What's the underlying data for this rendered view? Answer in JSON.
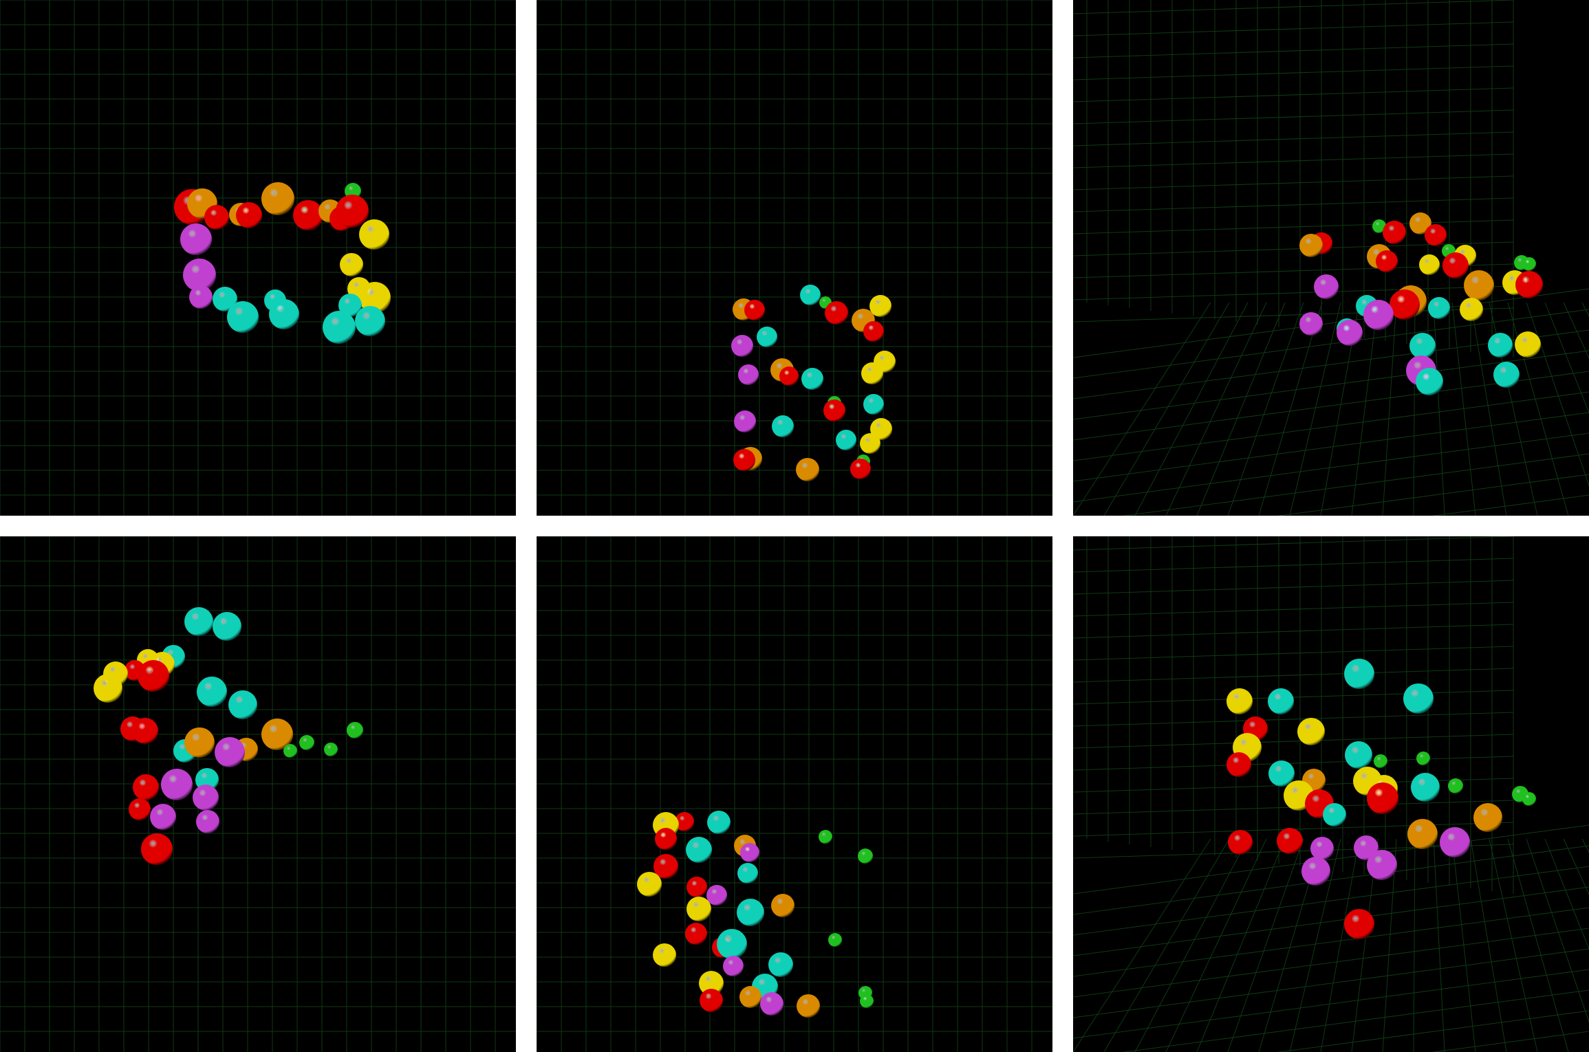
{
  "colors": {
    "background": "#000000",
    "grid": "#0f3a14",
    "red": "#e00000",
    "orange": "#d98a00",
    "yellow": "#e8d400",
    "magenta": "#c040d0",
    "cyan": "#10d0b8",
    "green": "#20c020"
  },
  "panels": [
    {
      "name": "view-1",
      "spheres": [
        {
          "c": "red",
          "x": 279,
          "y": 301,
          "r": 26
        },
        {
          "c": "orange",
          "x": 294,
          "y": 296,
          "r": 22
        },
        {
          "c": "red",
          "x": 315,
          "y": 316,
          "r": 18
        },
        {
          "c": "orange",
          "x": 350,
          "y": 312,
          "r": 17
        },
        {
          "c": "red",
          "x": 362,
          "y": 313,
          "r": 19
        },
        {
          "c": "orange",
          "x": 404,
          "y": 289,
          "r": 24
        },
        {
          "c": "green",
          "x": 440,
          "y": 310,
          "r": 11
        },
        {
          "c": "red",
          "x": 448,
          "y": 313,
          "r": 22
        },
        {
          "c": "orange",
          "x": 480,
          "y": 307,
          "r": 17
        },
        {
          "c": "red",
          "x": 497,
          "y": 318,
          "r": 18
        },
        {
          "c": "green",
          "x": 513,
          "y": 278,
          "r": 12
        },
        {
          "c": "red",
          "x": 512,
          "y": 307,
          "r": 24
        },
        {
          "c": "yellow",
          "x": 544,
          "y": 341,
          "r": 22
        },
        {
          "c": "magenta",
          "x": 285,
          "y": 348,
          "r": 23
        },
        {
          "c": "yellow",
          "x": 511,
          "y": 385,
          "r": 17
        },
        {
          "c": "magenta",
          "x": 290,
          "y": 400,
          "r": 24
        },
        {
          "c": "magenta",
          "x": 292,
          "y": 432,
          "r": 17
        },
        {
          "c": "yellow",
          "x": 522,
          "y": 420,
          "r": 17
        },
        {
          "c": "yellow",
          "x": 545,
          "y": 433,
          "r": 23
        },
        {
          "c": "cyan",
          "x": 327,
          "y": 435,
          "r": 18
        },
        {
          "c": "cyan",
          "x": 400,
          "y": 437,
          "r": 16
        },
        {
          "c": "cyan",
          "x": 509,
          "y": 444,
          "r": 17
        },
        {
          "c": "cyan",
          "x": 353,
          "y": 461,
          "r": 23
        },
        {
          "c": "cyan",
          "x": 413,
          "y": 457,
          "r": 22
        },
        {
          "c": "cyan",
          "x": 538,
          "y": 467,
          "r": 22
        },
        {
          "c": "cyan",
          "x": 493,
          "y": 476,
          "r": 24
        }
      ]
    },
    {
      "name": "view-2",
      "spheres": [
        {
          "c": "cyan",
          "x": 398,
          "y": 429,
          "r": 15
        },
        {
          "c": "green",
          "x": 420,
          "y": 440,
          "r": 9
        },
        {
          "c": "yellow",
          "x": 500,
          "y": 445,
          "r": 16
        },
        {
          "c": "orange",
          "x": 301,
          "y": 450,
          "r": 16
        },
        {
          "c": "red",
          "x": 317,
          "y": 451,
          "r": 15
        },
        {
          "c": "red",
          "x": 436,
          "y": 455,
          "r": 17
        },
        {
          "c": "orange",
          "x": 475,
          "y": 466,
          "r": 17
        },
        {
          "c": "red",
          "x": 490,
          "y": 482,
          "r": 15
        },
        {
          "c": "cyan",
          "x": 335,
          "y": 490,
          "r": 15
        },
        {
          "c": "magenta",
          "x": 299,
          "y": 503,
          "r": 16
        },
        {
          "c": "yellow",
          "x": 506,
          "y": 526,
          "r": 16
        },
        {
          "c": "orange",
          "x": 357,
          "y": 538,
          "r": 17
        },
        {
          "c": "red",
          "x": 367,
          "y": 547,
          "r": 14
        },
        {
          "c": "yellow",
          "x": 488,
          "y": 543,
          "r": 16
        },
        {
          "c": "magenta",
          "x": 308,
          "y": 545,
          "r": 15
        },
        {
          "c": "cyan",
          "x": 401,
          "y": 551,
          "r": 16
        },
        {
          "c": "green",
          "x": 433,
          "y": 586,
          "r": 10
        },
        {
          "c": "red",
          "x": 433,
          "y": 597,
          "r": 16
        },
        {
          "c": "cyan",
          "x": 490,
          "y": 588,
          "r": 15
        },
        {
          "c": "magenta",
          "x": 303,
          "y": 613,
          "r": 16
        },
        {
          "c": "cyan",
          "x": 358,
          "y": 620,
          "r": 16
        },
        {
          "c": "yellow",
          "x": 501,
          "y": 624,
          "r": 16
        },
        {
          "c": "cyan",
          "x": 450,
          "y": 640,
          "r": 15
        },
        {
          "c": "yellow",
          "x": 485,
          "y": 645,
          "r": 15
        },
        {
          "c": "orange",
          "x": 311,
          "y": 667,
          "r": 17
        },
        {
          "c": "red",
          "x": 302,
          "y": 669,
          "r": 16
        },
        {
          "c": "orange",
          "x": 394,
          "y": 683,
          "r": 17
        },
        {
          "c": "green",
          "x": 475,
          "y": 671,
          "r": 10
        },
        {
          "c": "red",
          "x": 471,
          "y": 682,
          "r": 15
        }
      ]
    },
    {
      "name": "view-3",
      "spheres": [
        {
          "c": "green",
          "x": 445,
          "y": 329,
          "r": 10
        },
        {
          "c": "orange",
          "x": 505,
          "y": 325,
          "r": 16
        },
        {
          "c": "red",
          "x": 467,
          "y": 338,
          "r": 17
        },
        {
          "c": "red",
          "x": 527,
          "y": 342,
          "r": 16
        },
        {
          "c": "red",
          "x": 361,
          "y": 354,
          "r": 16
        },
        {
          "c": "orange",
          "x": 346,
          "y": 357,
          "r": 17
        },
        {
          "c": "green",
          "x": 546,
          "y": 365,
          "r": 10
        },
        {
          "c": "yellow",
          "x": 570,
          "y": 372,
          "r": 16
        },
        {
          "c": "orange",
          "x": 445,
          "y": 373,
          "r": 18
        },
        {
          "c": "red",
          "x": 456,
          "y": 380,
          "r": 16
        },
        {
          "c": "yellow",
          "x": 518,
          "y": 385,
          "r": 15
        },
        {
          "c": "red",
          "x": 556,
          "y": 386,
          "r": 19
        },
        {
          "c": "green",
          "x": 652,
          "y": 382,
          "r": 11
        },
        {
          "c": "green",
          "x": 663,
          "y": 384,
          "r": 10
        },
        {
          "c": "orange",
          "x": 590,
          "y": 415,
          "r": 22
        },
        {
          "c": "yellow",
          "x": 642,
          "y": 411,
          "r": 18
        },
        {
          "c": "red",
          "x": 663,
          "y": 414,
          "r": 20
        },
        {
          "c": "magenta",
          "x": 368,
          "y": 417,
          "r": 18
        },
        {
          "c": "cyan",
          "x": 427,
          "y": 445,
          "r": 16
        },
        {
          "c": "orange",
          "x": 491,
          "y": 438,
          "r": 23
        },
        {
          "c": "red",
          "x": 482,
          "y": 443,
          "r": 22
        },
        {
          "c": "cyan",
          "x": 532,
          "y": 448,
          "r": 16
        },
        {
          "c": "yellow",
          "x": 579,
          "y": 450,
          "r": 17
        },
        {
          "c": "magenta",
          "x": 444,
          "y": 458,
          "r": 22
        },
        {
          "c": "magenta",
          "x": 346,
          "y": 471,
          "r": 17
        },
        {
          "c": "cyan",
          "x": 398,
          "y": 478,
          "r": 15
        },
        {
          "c": "magenta",
          "x": 402,
          "y": 484,
          "r": 19
        },
        {
          "c": "cyan",
          "x": 508,
          "y": 503,
          "r": 19
        },
        {
          "c": "cyan",
          "x": 621,
          "y": 502,
          "r": 18
        },
        {
          "c": "yellow",
          "x": 661,
          "y": 501,
          "r": 19
        },
        {
          "c": "magenta",
          "x": 506,
          "y": 539,
          "r": 22
        },
        {
          "c": "cyan",
          "x": 518,
          "y": 555,
          "r": 20
        },
        {
          "c": "cyan",
          "x": 630,
          "y": 545,
          "r": 19
        }
      ]
    },
    {
      "name": "view-4",
      "spheres": [
        {
          "c": "cyan",
          "x": 289,
          "y": 124,
          "r": 21
        },
        {
          "c": "cyan",
          "x": 330,
          "y": 131,
          "r": 21
        },
        {
          "c": "cyan",
          "x": 252,
          "y": 175,
          "r": 17
        },
        {
          "c": "yellow",
          "x": 215,
          "y": 180,
          "r": 16
        },
        {
          "c": "yellow",
          "x": 236,
          "y": 186,
          "r": 18
        },
        {
          "c": "red",
          "x": 196,
          "y": 195,
          "r": 15
        },
        {
          "c": "yellow",
          "x": 168,
          "y": 200,
          "r": 18
        },
        {
          "c": "red",
          "x": 223,
          "y": 203,
          "r": 23
        },
        {
          "c": "yellow",
          "x": 157,
          "y": 221,
          "r": 21
        },
        {
          "c": "cyan",
          "x": 308,
          "y": 226,
          "r": 22
        },
        {
          "c": "cyan",
          "x": 353,
          "y": 245,
          "r": 21
        },
        {
          "c": "orange",
          "x": 403,
          "y": 288,
          "r": 23
        },
        {
          "c": "red",
          "x": 193,
          "y": 280,
          "r": 18
        },
        {
          "c": "red",
          "x": 211,
          "y": 283,
          "r": 19
        },
        {
          "c": "green",
          "x": 446,
          "y": 300,
          "r": 11
        },
        {
          "c": "green",
          "x": 516,
          "y": 282,
          "r": 12
        },
        {
          "c": "cyan",
          "x": 269,
          "y": 312,
          "r": 17
        },
        {
          "c": "orange",
          "x": 290,
          "y": 300,
          "r": 22
        },
        {
          "c": "green",
          "x": 422,
          "y": 312,
          "r": 10
        },
        {
          "c": "green",
          "x": 481,
          "y": 310,
          "r": 10
        },
        {
          "c": "orange",
          "x": 358,
          "y": 310,
          "r": 17
        },
        {
          "c": "magenta",
          "x": 334,
          "y": 314,
          "r": 22
        },
        {
          "c": "red",
          "x": 212,
          "y": 365,
          "r": 19
        },
        {
          "c": "magenta",
          "x": 257,
          "y": 361,
          "r": 23
        },
        {
          "c": "cyan",
          "x": 301,
          "y": 354,
          "r": 17
        },
        {
          "c": "magenta",
          "x": 299,
          "y": 380,
          "r": 19
        },
        {
          "c": "red",
          "x": 203,
          "y": 397,
          "r": 16
        },
        {
          "c": "magenta",
          "x": 237,
          "y": 408,
          "r": 19
        },
        {
          "c": "magenta",
          "x": 302,
          "y": 415,
          "r": 17
        },
        {
          "c": "red",
          "x": 228,
          "y": 455,
          "r": 23
        }
      ]
    },
    {
      "name": "view-5",
      "spheres": [
        {
          "c": "red",
          "x": 215,
          "y": 415,
          "r": 14
        },
        {
          "c": "cyan",
          "x": 265,
          "y": 416,
          "r": 17
        },
        {
          "c": "yellow",
          "x": 188,
          "y": 420,
          "r": 19
        },
        {
          "c": "red",
          "x": 188,
          "y": 440,
          "r": 16
        },
        {
          "c": "green",
          "x": 420,
          "y": 437,
          "r": 10
        },
        {
          "c": "orange",
          "x": 303,
          "y": 450,
          "r": 16
        },
        {
          "c": "magenta",
          "x": 310,
          "y": 460,
          "r": 14
        },
        {
          "c": "cyan",
          "x": 236,
          "y": 456,
          "r": 19
        },
        {
          "c": "green",
          "x": 478,
          "y": 465,
          "r": 11
        },
        {
          "c": "red",
          "x": 188,
          "y": 480,
          "r": 18
        },
        {
          "c": "cyan",
          "x": 307,
          "y": 490,
          "r": 15
        },
        {
          "c": "yellow",
          "x": 164,
          "y": 506,
          "r": 18
        },
        {
          "c": "red",
          "x": 233,
          "y": 510,
          "r": 15
        },
        {
          "c": "magenta",
          "x": 262,
          "y": 522,
          "r": 15
        },
        {
          "c": "yellow",
          "x": 236,
          "y": 542,
          "r": 18
        },
        {
          "c": "orange",
          "x": 358,
          "y": 537,
          "r": 17
        },
        {
          "c": "cyan",
          "x": 311,
          "y": 547,
          "r": 20
        },
        {
          "c": "green",
          "x": 434,
          "y": 587,
          "r": 10
        },
        {
          "c": "red",
          "x": 232,
          "y": 578,
          "r": 16
        },
        {
          "c": "red",
          "x": 270,
          "y": 598,
          "r": 15
        },
        {
          "c": "cyan",
          "x": 284,
          "y": 593,
          "r": 22
        },
        {
          "c": "yellow",
          "x": 186,
          "y": 609,
          "r": 17
        },
        {
          "c": "magenta",
          "x": 286,
          "y": 625,
          "r": 15
        },
        {
          "c": "cyan",
          "x": 355,
          "y": 623,
          "r": 18
        },
        {
          "c": "yellow",
          "x": 254,
          "y": 650,
          "r": 18
        },
        {
          "c": "cyan",
          "x": 332,
          "y": 655,
          "r": 19
        },
        {
          "c": "green",
          "x": 478,
          "y": 664,
          "r": 10
        },
        {
          "c": "green",
          "x": 480,
          "y": 676,
          "r": 10
        },
        {
          "c": "orange",
          "x": 311,
          "y": 670,
          "r": 16
        },
        {
          "c": "red",
          "x": 254,
          "y": 675,
          "r": 17
        },
        {
          "c": "magenta",
          "x": 342,
          "y": 680,
          "r": 17
        },
        {
          "c": "orange",
          "x": 395,
          "y": 683,
          "r": 17
        }
      ]
    },
    {
      "name": "view-6",
      "spheres": [
        {
          "c": "cyan",
          "x": 416,
          "y": 200,
          "r": 22
        },
        {
          "c": "cyan",
          "x": 502,
          "y": 236,
          "r": 22
        },
        {
          "c": "yellow",
          "x": 242,
          "y": 240,
          "r": 19
        },
        {
          "c": "cyan",
          "x": 302,
          "y": 240,
          "r": 19
        },
        {
          "c": "red",
          "x": 265,
          "y": 280,
          "r": 18
        },
        {
          "c": "yellow",
          "x": 346,
          "y": 284,
          "r": 20
        },
        {
          "c": "yellow",
          "x": 253,
          "y": 307,
          "r": 21
        },
        {
          "c": "red",
          "x": 241,
          "y": 332,
          "r": 18
        },
        {
          "c": "cyan",
          "x": 415,
          "y": 318,
          "r": 20
        },
        {
          "c": "green",
          "x": 447,
          "y": 327,
          "r": 10
        },
        {
          "c": "green",
          "x": 509,
          "y": 323,
          "r": 10
        },
        {
          "c": "cyan",
          "x": 303,
          "y": 345,
          "r": 19
        },
        {
          "c": "orange",
          "x": 350,
          "y": 355,
          "r": 17
        },
        {
          "c": "yellow",
          "x": 428,
          "y": 356,
          "r": 21
        },
        {
          "c": "yellow",
          "x": 452,
          "y": 367,
          "r": 20
        },
        {
          "c": "green",
          "x": 556,
          "y": 363,
          "r": 11
        },
        {
          "c": "cyan",
          "x": 512,
          "y": 365,
          "r": 21
        },
        {
          "c": "yellow",
          "x": 328,
          "y": 377,
          "r": 22
        },
        {
          "c": "red",
          "x": 358,
          "y": 389,
          "r": 21
        },
        {
          "c": "red",
          "x": 450,
          "y": 381,
          "r": 23
        },
        {
          "c": "green",
          "x": 650,
          "y": 375,
          "r": 12
        },
        {
          "c": "green",
          "x": 663,
          "y": 382,
          "r": 10
        },
        {
          "c": "cyan",
          "x": 380,
          "y": 405,
          "r": 17
        },
        {
          "c": "orange",
          "x": 603,
          "y": 409,
          "r": 21
        },
        {
          "c": "orange",
          "x": 508,
          "y": 433,
          "r": 22
        },
        {
          "c": "magenta",
          "x": 555,
          "y": 445,
          "r": 22
        },
        {
          "c": "red",
          "x": 243,
          "y": 445,
          "r": 18
        },
        {
          "c": "red",
          "x": 315,
          "y": 443,
          "r": 19
        },
        {
          "c": "magenta",
          "x": 362,
          "y": 454,
          "r": 17
        },
        {
          "c": "magenta",
          "x": 426,
          "y": 453,
          "r": 18
        },
        {
          "c": "magenta",
          "x": 449,
          "y": 478,
          "r": 22
        },
        {
          "c": "magenta",
          "x": 353,
          "y": 487,
          "r": 21
        },
        {
          "c": "red",
          "x": 416,
          "y": 564,
          "r": 22
        }
      ]
    }
  ]
}
